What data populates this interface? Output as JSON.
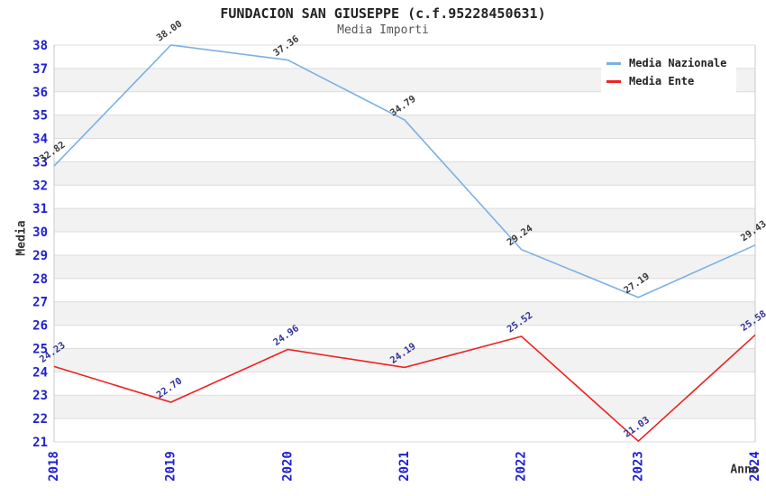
{
  "header": {
    "title": "FUNDACION SAN GIUSEPPE (c.f.95228450631)",
    "subtitle": "Media Importi"
  },
  "chart_data": {
    "type": "line",
    "title": "FUNDACION SAN GIUSEPPE (c.f.95228450631)",
    "subtitle": "Media Importi",
    "categories": [
      "2018",
      "2019",
      "2020",
      "2021",
      "2022",
      "2023",
      "2024"
    ],
    "series": [
      {
        "name": "Media Nazionale",
        "color": "#7cb0e3",
        "label_color": "#3a3a3a",
        "values": [
          32.82,
          38.0,
          37.36,
          34.79,
          29.24,
          27.19,
          29.43
        ]
      },
      {
        "name": "Media Ente",
        "color": "#ee2222",
        "label_color": "#333399",
        "values": [
          24.23,
          22.7,
          24.96,
          24.19,
          25.52,
          21.03,
          25.58
        ]
      }
    ],
    "xlabel": "Anno",
    "ylabel": "Media",
    "ylim": [
      21,
      38
    ],
    "ytick_step": 1,
    "grid": "horizontal-bands",
    "legend_position": "top-right",
    "band_color": "#f2f2f2",
    "grid_color": "#dcdcdc",
    "border_color": "#c9c9c9",
    "axis_tick_color": "#2020d0"
  }
}
